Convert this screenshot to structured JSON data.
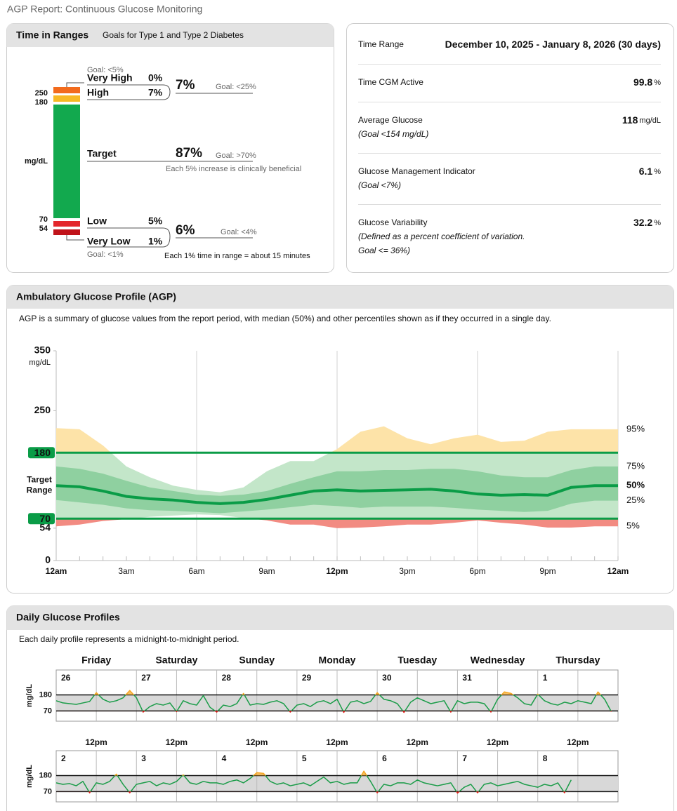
{
  "header": {
    "title": "AGP Report: Continuous Glucose Monitoring"
  },
  "time_in_ranges": {
    "title": "Time in Ranges",
    "subtitle": "Goals for Type 1 and Type 2 Diabetes",
    "unit": "mg/dL",
    "thresholds": [
      250,
      180,
      70,
      54
    ],
    "ranges": [
      {
        "label": "Very High",
        "percent": "0%"
      },
      {
        "label": "High",
        "percent": "7%"
      },
      {
        "label": "Target",
        "percent": "87%"
      },
      {
        "label": "Low",
        "percent": "5%"
      },
      {
        "label": "Very Low",
        "percent": "1%"
      }
    ],
    "high": {
      "percent": "7%",
      "goal": "Goal: <25%",
      "very_high_goal": "Goal: <5%"
    },
    "target": {
      "goal": "Goal: >70%",
      "note": "Each 5% increase is clinically beneficial"
    },
    "low": {
      "percent": "6%",
      "goal": "Goal: <4%",
      "very_low_goal": "Goal: <1%"
    },
    "footnote": "Each 1% time in range = about 15 minutes"
  },
  "stats": [
    {
      "label": "Time Range",
      "value": "December 10, 2025 - January 8, 2026 (30 days)"
    },
    {
      "label": "Time CGM Active",
      "value": "99.8",
      "unit": "%"
    },
    {
      "label": "Average Glucose",
      "note": [
        "(Goal <154 mg/dL)"
      ],
      "value": "118",
      "unit": "mg/dL"
    },
    {
      "label": "Glucose Management Indicator",
      "note": [
        "(Goal <7%)"
      ],
      "value": "6.1",
      "unit": "%"
    },
    {
      "label": "Glucose Variability",
      "note": [
        "(Defined as a percent coefficient of variation.",
        "Goal <= 36%)"
      ],
      "value": "32.2",
      "unit": "%"
    }
  ],
  "chart_data": [
    {
      "type": "area",
      "title": "Ambulatory Glucose Profile (AGP)",
      "description": "AGP is a summary of glucose values from the report period, with median (50%) and other percentiles shown as if they occurred in a single day.",
      "y_label": "mg/dL",
      "x": [
        0,
        1,
        2,
        3,
        4,
        5,
        6,
        7,
        8,
        9,
        10,
        11,
        12,
        13,
        14,
        15,
        16,
        17,
        18,
        19,
        20,
        21,
        22,
        23,
        24
      ],
      "xlim": [
        0,
        24
      ],
      "xticks": [
        {
          "value": 0,
          "label": "12am"
        },
        {
          "value": 3,
          "label": "3am"
        },
        {
          "value": 6,
          "label": "6am"
        },
        {
          "value": 9,
          "label": "9am"
        },
        {
          "value": 12,
          "label": "12pm"
        },
        {
          "value": 15,
          "label": "3pm"
        },
        {
          "value": 18,
          "label": "6pm"
        },
        {
          "value": 21,
          "label": "9pm"
        },
        {
          "value": 24,
          "label": "12am"
        }
      ],
      "ylim": [
        0,
        350
      ],
      "yticks": [
        0,
        54,
        70,
        180,
        250,
        350
      ],
      "grid": true,
      "band_color": "#c3e6c9",
      "target": {
        "label": [
          "Target",
          "Range"
        ],
        "low": 70,
        "high": 180,
        "color": "#0a9c47"
      },
      "series": [
        {
          "name": "95%",
          "color": "#fde3a8",
          "values": [
            221,
            219,
            192,
            157,
            139,
            125,
            118,
            114,
            122,
            149,
            166,
            166,
            186,
            215,
            224,
            204,
            194,
            204,
            210,
            198,
            200,
            215,
            219,
            219,
            219
          ]
        },
        {
          "name": "75%",
          "color": "#8fd0a0",
          "values": [
            157,
            153,
            145,
            133,
            122,
            116,
            110,
            108,
            110,
            116,
            128,
            139,
            149,
            149,
            151,
            151,
            153,
            153,
            149,
            142,
            139,
            139,
            151,
            157,
            157
          ]
        },
        {
          "name": "50%",
          "color": "#0a9c47",
          "values": [
            125,
            123,
            116,
            107,
            103,
            101,
            97,
            95,
            97,
            102,
            109,
            116,
            118,
            116,
            117,
            118,
            119,
            116,
            111,
            109,
            110,
            109,
            122,
            125,
            125
          ]
        },
        {
          "name": "25%",
          "color": "#8fd0a0",
          "values": [
            101,
            97,
            93,
            87,
            84,
            83,
            81,
            79,
            82,
            85,
            89,
            93,
            91,
            88,
            90,
            90,
            90,
            88,
            85,
            83,
            81,
            83,
            95,
            100,
            100
          ]
        },
        {
          "name": "5%",
          "color": "#f28b82",
          "values": [
            57,
            60,
            66,
            69,
            73,
            75,
            77,
            76,
            71,
            67,
            60,
            60,
            54,
            55,
            57,
            60,
            60,
            63,
            67,
            63,
            60,
            55,
            55,
            57,
            57
          ]
        }
      ]
    },
    {
      "type": "line",
      "title": "Daily Glucose Profiles",
      "description": "Each daily profile represents a midnight-to-midnight period.",
      "y_label": "mg/dL",
      "ylim": [
        0,
        350
      ],
      "yticks": [
        70,
        180
      ],
      "x": [
        0,
        2,
        4,
        6,
        8,
        10,
        12,
        14,
        16,
        18,
        20,
        22
      ],
      "xlim": [
        0,
        24
      ],
      "weekdays": [
        "Friday",
        "Saturday",
        "Sunday",
        "Monday",
        "Tuesday",
        "Wednesday",
        "Thursday"
      ],
      "noon_label": "12pm",
      "color": "#1a9c48",
      "high_color": "#f5a623",
      "low_color": "#e0201b",
      "weeks": [
        {
          "days": [
            {
              "date": "26",
              "values": [
                140,
                125,
                120,
                115,
                125,
                135,
                195,
                150,
                130,
                140,
                160,
                210
              ]
            },
            {
              "date": "27",
              "values": [
                160,
                62,
                100,
                120,
                110,
                125,
                65,
                140,
                120,
                110,
                175,
                95
              ]
            },
            {
              "date": "28",
              "values": [
                62,
                110,
                100,
                120,
                190,
                110,
                120,
                115,
                130,
                140,
                120,
                62
              ]
            },
            {
              "date": "29",
              "values": [
                110,
                120,
                100,
                130,
                140,
                120,
                150,
                60,
                130,
                140,
                120,
                135
              ]
            },
            {
              "date": "30",
              "values": [
                195,
                150,
                140,
                120,
                60,
                130,
                160,
                140,
                120,
                130,
                140,
                62
              ]
            },
            {
              "date": "31",
              "values": [
                140,
                120,
                130,
                130,
                120,
                62,
                150,
                200,
                190,
                160,
                120,
                110
              ]
            },
            {
              "date": "1",
              "values": [
                185,
                140,
                120,
                110,
                130,
                120,
                140,
                130,
                120,
                200,
                150,
                65
              ]
            }
          ]
        },
        {
          "days": [
            {
              "date": "2",
              "values": [
                130,
                120,
                125,
                110,
                140,
                62,
                130,
                120,
                140,
                190,
                120,
                62
              ]
            },
            {
              "date": "3",
              "values": [
                120,
                130,
                140,
                110,
                130,
                120,
                140,
                185,
                130,
                120,
                140,
                130
              ]
            },
            {
              "date": "4",
              "values": [
                130,
                120,
                140,
                150,
                130,
                160,
                200,
                195,
                140,
                120,
                130,
                110
              ]
            },
            {
              "date": "5",
              "values": [
                120,
                130,
                110,
                140,
                170,
                130,
                140,
                120,
                130,
                130,
                210,
                140
              ]
            },
            {
              "date": "6",
              "values": [
                62,
                120,
                110,
                130,
                130,
                120,
                150,
                130,
                120,
                110,
                120,
                130
              ]
            },
            {
              "date": "7",
              "values": [
                60,
                100,
                120,
                62,
                120,
                130,
                110,
                120,
                130,
                140,
                120,
                110
              ]
            },
            {
              "date": "8",
              "values": [
                100,
                120,
                110,
                130,
                62,
                150,
                null,
                null,
                null,
                null,
                null,
                null
              ]
            }
          ]
        }
      ]
    }
  ]
}
